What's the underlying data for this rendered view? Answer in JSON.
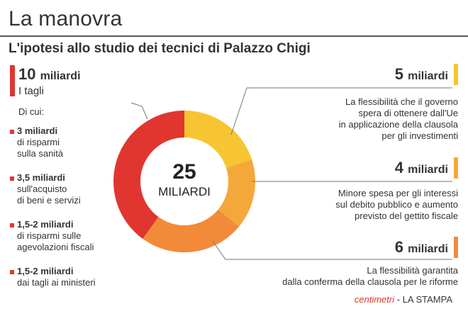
{
  "header": {
    "title": "La manovra",
    "subtitle": "L'ipotesi allo studio dei tecnici di Palazzo Chigi"
  },
  "left": {
    "amount": "10",
    "unit": "miliardi",
    "label": "I tagli",
    "of_which": "Di cui:",
    "items": [
      {
        "amount": "3 miliardi",
        "desc1": "di risparmi",
        "desc2": "sulla sanità"
      },
      {
        "amount": "3,5 miliardi",
        "desc1": "sull'acquisto",
        "desc2": "di beni e servizi"
      },
      {
        "amount": "1,5-2 miliardi",
        "desc1": "di risparmi sulle",
        "desc2": "agevolazioni fiscali"
      },
      {
        "amount": "1,5-2 miliardi",
        "desc1": "dai tagli ai ministeri",
        "desc2": ""
      }
    ]
  },
  "right": [
    {
      "amount": "5",
      "unit": "miliardi",
      "lines": [
        "La flessibilità che il governo",
        "spera di ottenere dall'Ue",
        "in applicazione della clausola",
        "per gli investimenti"
      ]
    },
    {
      "amount": "4",
      "unit": "miliardi",
      "lines": [
        "Minore spesa per gli interessi",
        "sul debito pubblico e aumento",
        "previsto del gettito fiscale"
      ]
    },
    {
      "amount": "6",
      "unit": "miliardi",
      "lines": [
        "La flessibilità garantita",
        "dalla conferma della clausola per le riforme"
      ]
    }
  ],
  "center": {
    "number": "25",
    "label": "MILIARDI"
  },
  "credit": {
    "brand": "centimetri",
    "separator": " - ",
    "source": "LA STAMPA"
  },
  "colors": {
    "tagli": "#e0362f",
    "flessibilita_investimenti": "#f6c531",
    "interessi": "#f5a83a",
    "flessibilita_riforme": "#f28a3a"
  },
  "chart_data": {
    "type": "pie",
    "donut": true,
    "total": 25,
    "unit": "miliardi",
    "slices": [
      {
        "value": 5,
        "color": "#f6c531"
      },
      {
        "value": 4,
        "color": "#f5a83a"
      },
      {
        "value": 6,
        "color": "#f28a3a"
      },
      {
        "value": 10,
        "color": "#e0362f"
      }
    ]
  }
}
